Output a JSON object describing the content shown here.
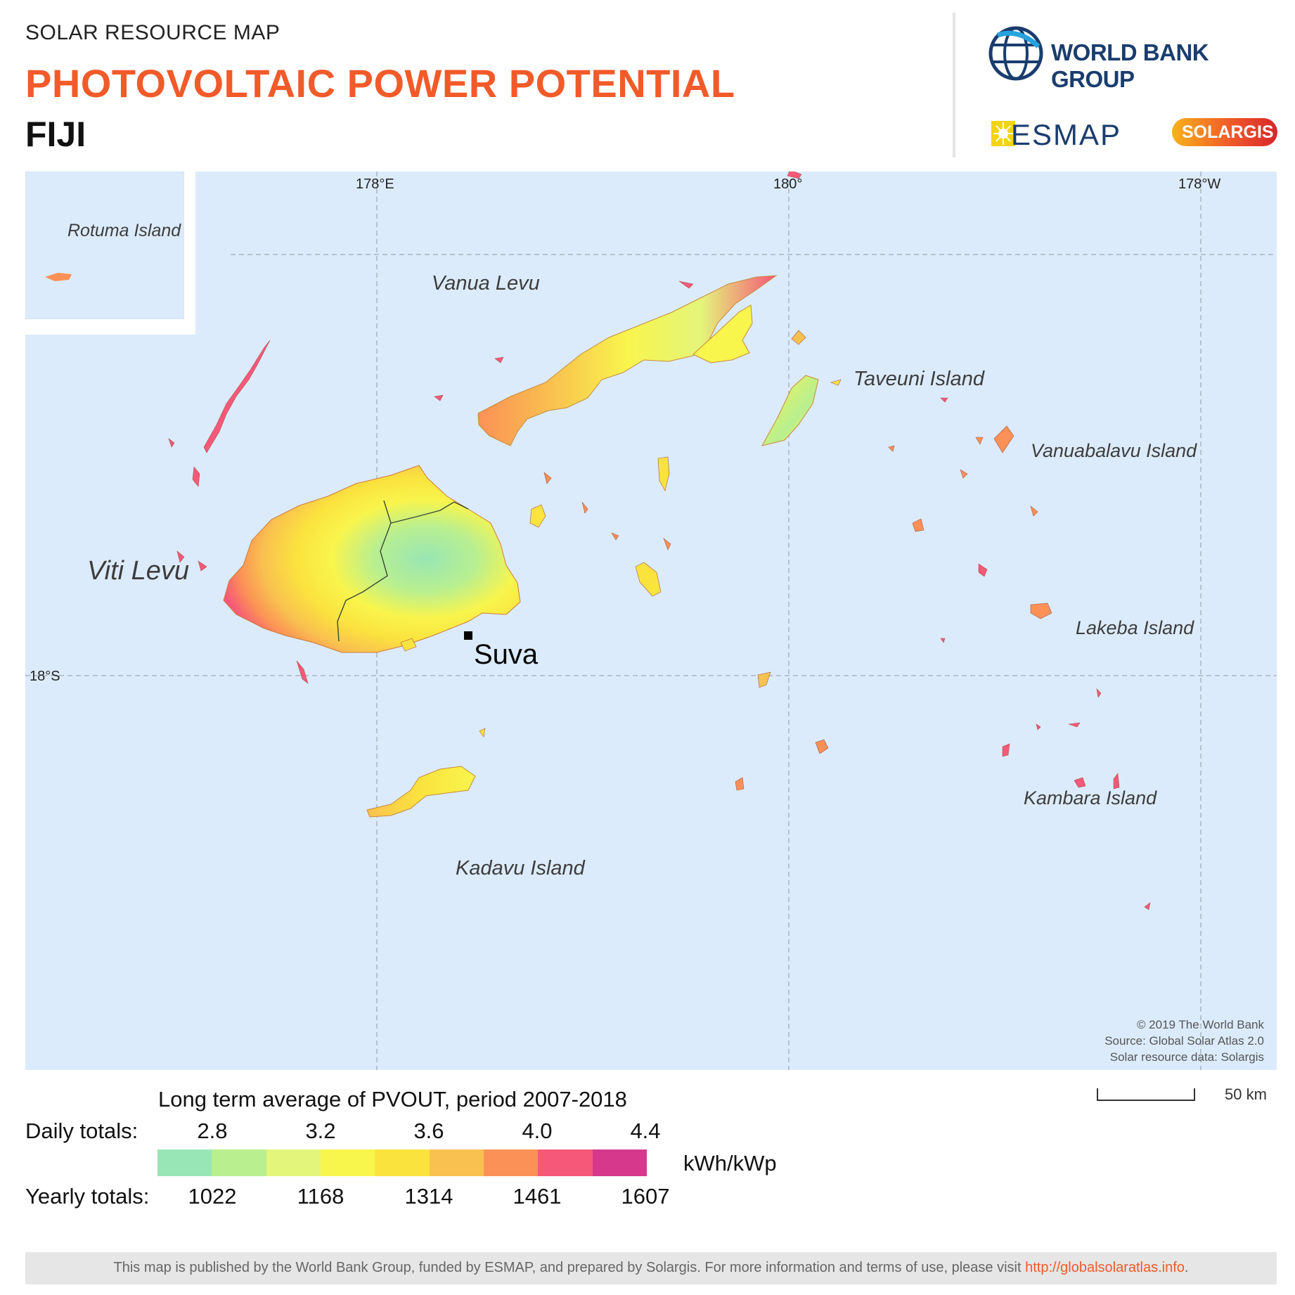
{
  "header": {
    "subtitle": "SOLAR RESOURCE MAP",
    "title": "PHOTOVOLTAIC POWER POTENTIAL",
    "country": "FIJI"
  },
  "logos": {
    "world_bank": "WORLD BANK GROUP",
    "esmap": "ESMAP",
    "solargis": "SOLARGIS"
  },
  "map": {
    "graticule": {
      "longitudes": [
        "178°E",
        "180°",
        "178°W"
      ],
      "latitudes": [
        "18°S"
      ]
    },
    "place_labels": {
      "rotuma": "Rotuma Island",
      "vanua_levu": "Vanua Levu",
      "taveuni": "Taveuni Island",
      "vanuabalavu": "Vanuabalavu Island",
      "viti_levu": "Viti Levu",
      "lakeba": "Lakeba Island",
      "kambara": "Kambara Island",
      "kadavu": "Kadavu Island"
    },
    "capital": "Suva",
    "credits": [
      "© 2019 The World Bank",
      "Source: Global Solar Atlas 2.0",
      "Solar resource data: Solargis"
    ],
    "scale": "50 km"
  },
  "legend": {
    "title": "Long term average of PVOUT, period 2007-2018",
    "daily_label": "Daily totals:",
    "yearly_label": "Yearly totals:",
    "daily_ticks": [
      "2.8",
      "3.2",
      "3.6",
      "4.0",
      "4.4"
    ],
    "yearly_ticks": [
      "1022",
      "1168",
      "1314",
      "1461",
      "1607"
    ],
    "unit": "kWh/kWp",
    "colors": [
      "#98e6b5",
      "#b9ef8f",
      "#e3f57a",
      "#f8f54d",
      "#fbe33e",
      "#f9c14f",
      "#fb9156",
      "#f65879",
      "#d6398c"
    ]
  },
  "footer": {
    "text": "This map is published by the World Bank Group, funded by ESMAP, and prepared by Solargis. For more information and terms of use, please visit ",
    "link": "http://globalsolaratlas.info",
    "end": "."
  }
}
